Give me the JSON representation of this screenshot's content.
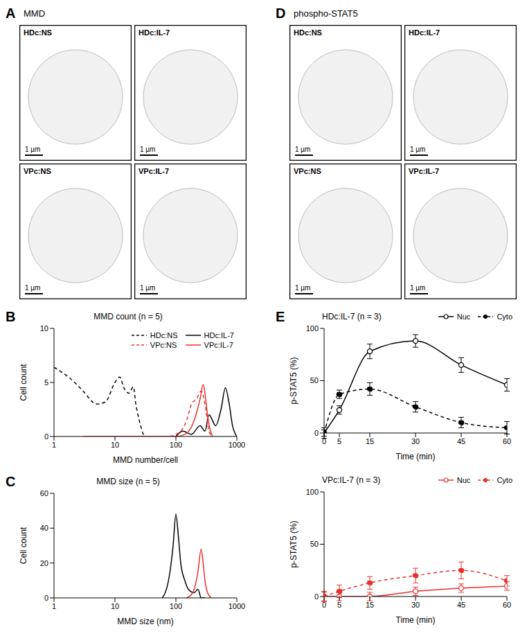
{
  "panel_labels": [
    "A",
    "B",
    "C",
    "D",
    "E"
  ],
  "image_panels": [
    {
      "title": "MMD",
      "images": [
        {
          "label": "HDc:NS",
          "scale_bar": "1 µm"
        },
        {
          "label": "HDc:IL-7",
          "scale_bar": "1 µm"
        },
        {
          "label": "VPc:NS",
          "scale_bar": "1 µm"
        },
        {
          "label": "VPc:IL-7",
          "scale_bar": "1 µm"
        }
      ]
    },
    {
      "title": "phospho-STAT5",
      "images": [
        {
          "label": "HDc:NS",
          "scale_bar": "1 µm"
        },
        {
          "label": "HDc:IL-7",
          "scale_bar": "1 µm"
        },
        {
          "label": "VPc:NS",
          "scale_bar": "1 µm"
        },
        {
          "label": "VPc:IL-7",
          "scale_bar": "1 µm"
        }
      ]
    }
  ],
  "chart_data": [
    {
      "type": "line",
      "title": "MMD count (n = 5)",
      "x_label": "MMD number/cell",
      "y_label": "Cell count",
      "log": "x",
      "xlim": [
        1,
        1000
      ],
      "xticks": [
        1,
        10,
        100,
        1000
      ],
      "ylim": [
        0,
        10
      ],
      "yticks": [
        0,
        5,
        10
      ],
      "legend": "upper right",
      "series": [
        {
          "name": "HDc:NS",
          "color": "#000000",
          "line_style": "dashed",
          "x": [
            1,
            2,
            3,
            5,
            7,
            10,
            12,
            14,
            17,
            20,
            22,
            25,
            30
          ],
          "values": [
            6.4,
            5.2,
            4.2,
            3,
            3.2,
            5,
            5.5,
            4.5,
            4,
            4.6,
            3,
            1.5,
            0
          ]
        },
        {
          "name": "HDc:IL-7",
          "color": "#000000",
          "line_style": "solid",
          "x": [
            100,
            130,
            180,
            250,
            300,
            350,
            450,
            550,
            650,
            750,
            850,
            1000
          ],
          "values": [
            0,
            0.5,
            0.2,
            1,
            0.5,
            2,
            1,
            2.5,
            4.5,
            3,
            1,
            0
          ]
        },
        {
          "name": "VPc:NS",
          "color": "#e8302a",
          "line_style": "dashed",
          "x": [
            80,
            120,
            150,
            180,
            220,
            260,
            300,
            350,
            400
          ],
          "values": [
            0,
            0.5,
            1.5,
            3,
            3.5,
            4.2,
            3,
            0.5,
            0
          ]
        },
        {
          "name": "VPc:IL-7",
          "color": "#e8302a",
          "line_style": "solid",
          "x": [
            3,
            100,
            150,
            200,
            250,
            280,
            300,
            330,
            370,
            400
          ],
          "values": [
            0,
            0,
            0.3,
            1.5,
            3.5,
            4.8,
            4,
            2,
            0.5,
            0
          ]
        }
      ]
    },
    {
      "type": "line",
      "title": "MMD size (n = 5)",
      "x_label": "MMD size (nm)",
      "y_label": "Cell count",
      "log": "x",
      "xlim": [
        1,
        1000
      ],
      "xticks": [
        1,
        10,
        100,
        1000
      ],
      "ylim": [
        0,
        60
      ],
      "yticks": [
        0,
        20,
        40,
        60
      ],
      "series": [
        {
          "color": "#000000",
          "line_style": "solid",
          "x": [
            60,
            70,
            80,
            90,
            100,
            110,
            120,
            140,
            160,
            200,
            230,
            260,
            300
          ],
          "values": [
            0,
            5,
            15,
            30,
            48,
            35,
            20,
            10,
            5,
            3,
            5,
            0,
            0
          ]
        },
        {
          "color": "#e8302a",
          "line_style": "solid",
          "x": [
            150,
            180,
            200,
            230,
            260,
            280,
            300,
            330,
            380
          ],
          "values": [
            0,
            2,
            5,
            15,
            28,
            20,
            10,
            3,
            0
          ]
        }
      ]
    },
    {
      "type": "line",
      "title": "HDc:IL-7 (n = 3)",
      "x_label": "Time (min)",
      "y_label": "p-STAT5 (%)",
      "xlim": [
        0,
        60
      ],
      "xticks": [
        0,
        5,
        15,
        30,
        45,
        60
      ],
      "ylim": [
        0,
        100
      ],
      "yticks": [
        0,
        50,
        100
      ],
      "legend": "upper right",
      "series": [
        {
          "name": "Nuc",
          "color": "#000000",
          "line_style": "solid",
          "marker": "open_circle",
          "x": [
            0,
            5,
            15,
            30,
            45,
            60
          ],
          "values": [
            0,
            22,
            78,
            88,
            65,
            46
          ],
          "errors": [
            5,
            4,
            7,
            6,
            7,
            6
          ]
        },
        {
          "name": "Cyto",
          "color": "#000000",
          "line_style": "dashed",
          "marker": "circle",
          "x": [
            0,
            5,
            15,
            30,
            45,
            60
          ],
          "values": [
            0,
            37,
            42,
            25,
            10,
            5
          ],
          "errors": [
            3,
            4,
            6,
            5,
            5,
            6
          ]
        }
      ]
    },
    {
      "type": "line",
      "title": "VPc:IL-7 (n = 3)",
      "x_label": "Time (min)",
      "y_label": "p-STAT5 (%)",
      "xlim": [
        0,
        60
      ],
      "xticks": [
        0,
        5,
        15,
        30,
        45,
        60
      ],
      "ylim": [
        0,
        100
      ],
      "yticks": [
        0,
        50,
        100
      ],
      "legend": "upper right",
      "series": [
        {
          "name": "Nuc",
          "color": "#e8302a",
          "line_style": "solid",
          "marker": "open_circle",
          "x": [
            0,
            5,
            15,
            30,
            45,
            60
          ],
          "values": [
            0,
            0,
            0,
            5,
            8,
            10
          ],
          "errors": [
            4,
            4,
            4,
            4,
            4,
            4
          ]
        },
        {
          "name": "Cyto",
          "color": "#e8302a",
          "line_style": "dashed",
          "marker": "circle",
          "x": [
            0,
            5,
            15,
            30,
            45,
            60
          ],
          "values": [
            0,
            5,
            13,
            20,
            25,
            15
          ],
          "errors": [
            5,
            6,
            6,
            7,
            8,
            5
          ]
        }
      ]
    }
  ]
}
